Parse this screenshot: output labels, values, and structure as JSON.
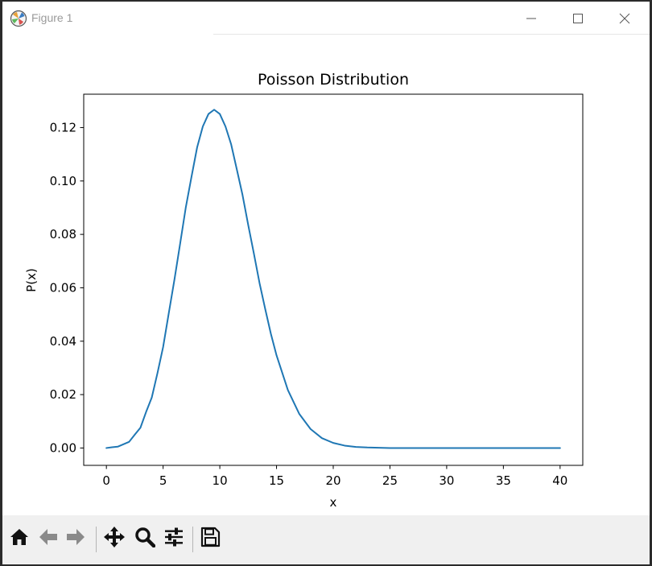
{
  "window": {
    "title": "Figure 1",
    "icons": {
      "app": "matplotlib-icon",
      "minimize": "minimize-icon",
      "maximize": "maximize-icon",
      "close": "close-icon"
    }
  },
  "toolbar": {
    "buttons": [
      {
        "name": "home-button",
        "icon": "home-icon"
      },
      {
        "name": "back-button",
        "icon": "arrow-left-icon"
      },
      {
        "name": "forward-button",
        "icon": "arrow-right-icon"
      },
      {
        "name": "pan-button",
        "icon": "move-icon"
      },
      {
        "name": "zoom-button",
        "icon": "magnifier-icon"
      },
      {
        "name": "configure-subplots-button",
        "icon": "sliders-icon"
      },
      {
        "name": "save-button",
        "icon": "floppy-disk-icon"
      }
    ]
  },
  "chart_data": {
    "type": "line",
    "title": "Poisson Distribution",
    "xlabel": "x",
    "ylabel": "P(x)",
    "xlim": [
      -2,
      42
    ],
    "ylim": [
      -0.0065,
      0.1325
    ],
    "xticks": [
      0,
      5,
      10,
      15,
      20,
      25,
      30,
      35,
      40
    ],
    "xtick_labels": [
      "0",
      "5",
      "10",
      "15",
      "20",
      "25",
      "30",
      "35",
      "40"
    ],
    "yticks": [
      0.0,
      0.02,
      0.04,
      0.06,
      0.08,
      0.1,
      0.12
    ],
    "ytick_labels": [
      "0.00",
      "0.02",
      "0.04",
      "0.06",
      "0.08",
      "0.10",
      "0.12"
    ],
    "grid": false,
    "series": [
      {
        "color": "#1f77b4",
        "x": [
          0,
          0.5,
          1,
          1.5,
          2,
          2.5,
          3,
          3.5,
          4,
          4.5,
          5,
          5.5,
          6,
          6.5,
          7,
          7.5,
          8,
          8.5,
          9,
          9.5,
          10,
          10.5,
          11,
          11.5,
          12,
          12.5,
          13,
          13.5,
          14,
          14.5,
          15,
          16,
          17,
          18,
          19,
          20,
          21,
          22,
          23,
          24,
          25,
          27,
          30,
          33,
          36,
          40
        ],
        "y": [
          0.0,
          0.0003,
          0.0005,
          0.0014,
          0.0023,
          0.005,
          0.0076,
          0.0135,
          0.0189,
          0.028,
          0.0378,
          0.0505,
          0.0631,
          0.0765,
          0.0901,
          0.1015,
          0.1126,
          0.1204,
          0.1251,
          0.1267,
          0.1251,
          0.1204,
          0.1137,
          0.1043,
          0.0948,
          0.0836,
          0.0729,
          0.0618,
          0.0521,
          0.0428,
          0.0347,
          0.0217,
          0.0128,
          0.0071,
          0.0037,
          0.0019,
          0.0009,
          0.0004,
          0.0002,
          0.0001,
          0.0,
          0.0,
          0.0,
          0.0,
          0.0,
          0.0
        ]
      }
    ]
  }
}
